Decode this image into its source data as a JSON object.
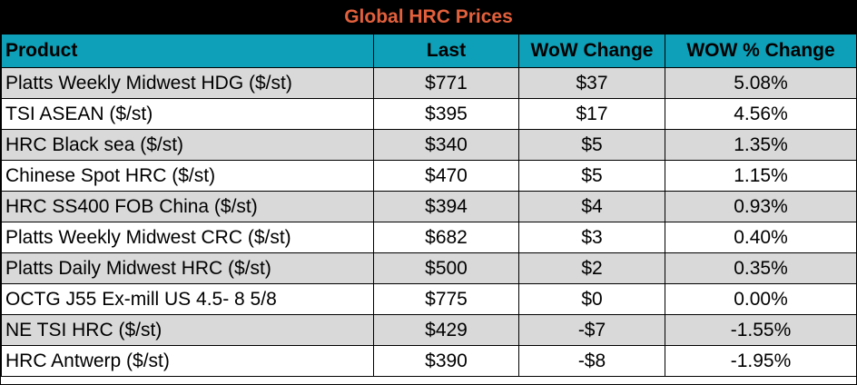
{
  "chart_data": {
    "type": "table",
    "title": "Global HRC Prices",
    "columns": [
      "Product",
      "Last",
      "WoW Change",
      "WOW % Change"
    ],
    "rows": [
      {
        "product": "Platts Weekly Midwest HDG ($/st)",
        "last": "$771",
        "wow": "$37",
        "pct": "5.08%"
      },
      {
        "product": "TSI ASEAN ($/st)",
        "last": "$395",
        "wow": "$17",
        "pct": "4.56%"
      },
      {
        "product": "HRC Black sea ($/st)",
        "last": "$340",
        "wow": "$5",
        "pct": "1.35%"
      },
      {
        "product": "Chinese Spot HRC ($/st)",
        "last": "$470",
        "wow": "$5",
        "pct": "1.15%"
      },
      {
        "product": "HRC SS400 FOB China ($/st)",
        "last": "$394",
        "wow": "$4",
        "pct": "0.93%"
      },
      {
        "product": "Platts Weekly Midwest CRC ($/st)",
        "last": "$682",
        "wow": "$3",
        "pct": "0.40%"
      },
      {
        "product": "Platts Daily Midwest HRC ($/st)",
        "last": "$500",
        "wow": "$2",
        "pct": "0.35%"
      },
      {
        "product": "OCTG J55 Ex-mill US 4.5- 8 5/8",
        "last": "$775",
        "wow": "$0",
        "pct": "0.00%"
      },
      {
        "product": "NE TSI HRC ($/st)",
        "last": "$429",
        "wow": "-$7",
        "pct": "-1.55%"
      },
      {
        "product": "HRC Antwerp ($/st)",
        "last": "$390",
        "wow": "-$8",
        "pct": "-1.95%"
      }
    ]
  },
  "colors": {
    "title_background": "#000000",
    "title_text": "#e2603c",
    "header_background": "#0da0b8",
    "row_shade": "#d9d9d9",
    "row_plain": "#ffffff"
  }
}
